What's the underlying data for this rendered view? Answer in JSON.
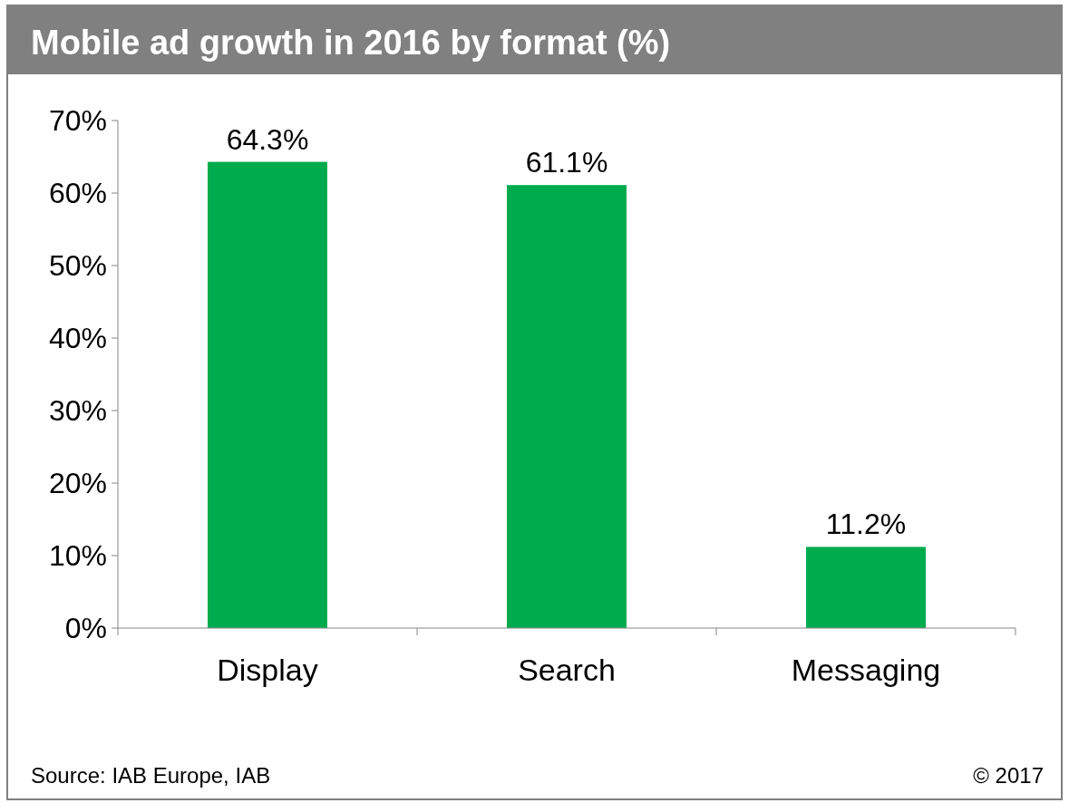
{
  "chart_data": {
    "type": "bar",
    "title": "Mobile ad growth in 2016 by format (%)",
    "categories": [
      "Display",
      "Search",
      "Messaging"
    ],
    "values": [
      64.3,
      61.1,
      11.2
    ],
    "value_labels": [
      "64.3%",
      "61.1%",
      "11.2%"
    ],
    "color": "#00ab4e",
    "ylim": [
      0,
      70
    ],
    "yticks": [
      {
        "value": 0,
        "label": "0%"
      },
      {
        "value": 10,
        "label": "10%"
      },
      {
        "value": 20,
        "label": "20%"
      },
      {
        "value": 30,
        "label": "30%"
      },
      {
        "value": 40,
        "label": "40%"
      },
      {
        "value": 50,
        "label": "50%"
      },
      {
        "value": 60,
        "label": "60%"
      },
      {
        "value": 70,
        "label": "70%"
      }
    ],
    "grid": false,
    "annotations": [
      "Source: IAB Europe, IAB",
      "© 2017"
    ]
  }
}
